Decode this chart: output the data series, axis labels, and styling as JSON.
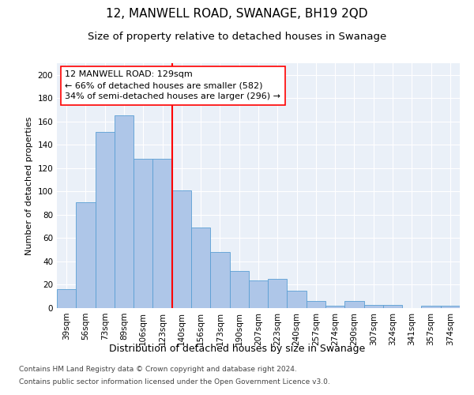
{
  "title": "12, MANWELL ROAD, SWANAGE, BH19 2QD",
  "subtitle": "Size of property relative to detached houses in Swanage",
  "xlabel": "Distribution of detached houses by size in Swanage",
  "ylabel": "Number of detached properties",
  "categories": [
    "39sqm",
    "56sqm",
    "73sqm",
    "89sqm",
    "106sqm",
    "123sqm",
    "140sqm",
    "156sqm",
    "173sqm",
    "190sqm",
    "207sqm",
    "223sqm",
    "240sqm",
    "257sqm",
    "274sqm",
    "290sqm",
    "307sqm",
    "324sqm",
    "341sqm",
    "357sqm",
    "374sqm"
  ],
  "values": [
    16,
    91,
    151,
    165,
    128,
    128,
    101,
    69,
    48,
    32,
    24,
    25,
    15,
    6,
    2,
    6,
    3,
    3,
    0,
    2,
    2
  ],
  "bar_color": "#aec6e8",
  "bar_edge_color": "#5a9fd4",
  "vline_x_index": 6,
  "vline_color": "red",
  "annotation_text": "12 MANWELL ROAD: 129sqm\n← 66% of detached houses are smaller (582)\n34% of semi-detached houses are larger (296) →",
  "annotation_box_color": "white",
  "annotation_box_edge_color": "red",
  "ylim": [
    0,
    210
  ],
  "yticks": [
    0,
    20,
    40,
    60,
    80,
    100,
    120,
    140,
    160,
    180,
    200
  ],
  "background_color": "#eaf0f8",
  "footer_line1": "Contains HM Land Registry data © Crown copyright and database right 2024.",
  "footer_line2": "Contains public sector information licensed under the Open Government Licence v3.0.",
  "title_fontsize": 11,
  "subtitle_fontsize": 9.5,
  "xlabel_fontsize": 9,
  "ylabel_fontsize": 8,
  "tick_fontsize": 7.5,
  "annotation_fontsize": 8,
  "footer_fontsize": 6.5
}
